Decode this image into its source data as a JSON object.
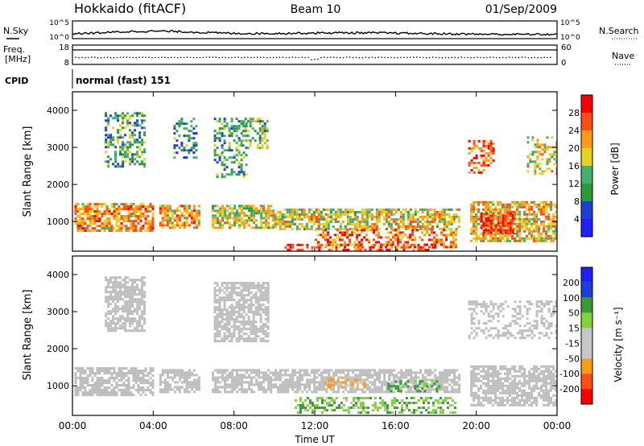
{
  "header": {
    "station": "Hokkaido (fitACF)",
    "beam": "Beam 10",
    "date": "01/Sep/2009"
  },
  "noise_panel": {
    "left_label": "N.Sky",
    "right_label": "N.Search",
    "tick_hi": "10^5",
    "tick_lo": "10^0"
  },
  "freq_panel": {
    "left_label_1": "Freq.",
    "left_label_2": "[MHz]",
    "left_tick_hi": "18",
    "left_tick_lo": "8",
    "right_label": "Nave",
    "right_tick_hi": "60",
    "right_tick_lo": "0"
  },
  "cpid": {
    "label": "CPID",
    "value": "normal (fast) 151"
  },
  "colors": {
    "power_scale": [
      "#1f1fff",
      "#1c3fd6",
      "#2a9a3a",
      "#44b070",
      "#e6d21e",
      "#ff9a14",
      "#ff4b14",
      "#ff0000"
    ],
    "velocity_scale": [
      "#ff0000",
      "#ff4b14",
      "#ff9a14",
      "#c6c6c6",
      "#c6c6c6",
      "#7fd43a",
      "#3a9a3a",
      "#1c3fd6",
      "#1f1fff"
    ],
    "ground_scatter": "#bdbdbd"
  },
  "chart_data": [
    {
      "type": "heatmap",
      "name": "power",
      "ylabel": "Slant Range [km]",
      "yticks": [
        1000,
        2000,
        3000,
        4000
      ],
      "ylim": [
        200,
        4500
      ],
      "colorbar_label": "Power [dB]",
      "colorbar_ticks": [
        4,
        8,
        12,
        16,
        20,
        24,
        28
      ],
      "colorbar_range": [
        0,
        32
      ],
      "regions": [
        {
          "t": [
            0.1,
            4.0
          ],
          "r": [
            750,
            1500
          ],
          "v": 22
        },
        {
          "t": [
            4.3,
            6.3
          ],
          "r": [
            800,
            1450
          ],
          "v": 22
        },
        {
          "t": [
            6.9,
            10.0
          ],
          "r": [
            850,
            1450
          ],
          "v": 18
        },
        {
          "t": [
            10.0,
            19.2
          ],
          "r": [
            800,
            1350
          ],
          "v": 18
        },
        {
          "t": [
            19.7,
            24.0
          ],
          "r": [
            500,
            1550
          ],
          "v": 20
        },
        {
          "t": [
            20.2,
            21.8
          ],
          "r": [
            700,
            1250
          ],
          "v": 28
        },
        {
          "t": [
            1.6,
            3.6
          ],
          "r": [
            2500,
            3950
          ],
          "v": 12
        },
        {
          "t": [
            5.0,
            6.1
          ],
          "r": [
            2700,
            3800
          ],
          "v": 10
        },
        {
          "t": [
            7.0,
            8.6
          ],
          "r": [
            2200,
            3800
          ],
          "v": 12
        },
        {
          "t": [
            8.4,
            9.7
          ],
          "r": [
            3000,
            3800
          ],
          "v": 14
        },
        {
          "t": [
            19.6,
            20.8
          ],
          "r": [
            2300,
            3200
          ],
          "v": 26
        },
        {
          "t": [
            22.5,
            24.0
          ],
          "r": [
            2300,
            3300
          ],
          "v": 18
        },
        {
          "t": [
            12.0,
            19.0
          ],
          "r": [
            300,
            800
          ],
          "v": 24
        },
        {
          "t": [
            10.5,
            18.0
          ],
          "r": [
            200,
            400
          ],
          "v": 28
        }
      ]
    },
    {
      "type": "heatmap",
      "name": "velocity",
      "xlabel": "Time UT",
      "xticks": [
        "00:00",
        "04:00",
        "08:00",
        "12:00",
        "16:00",
        "20:00",
        "00:00"
      ],
      "xlim": [
        0,
        24
      ],
      "ylabel": "Slant Range [km]",
      "yticks": [
        1000,
        2000,
        3000,
        4000
      ],
      "ylim": [
        200,
        4500
      ],
      "colorbar_label": "Velocity [m s⁻¹]",
      "colorbar_ticks": [
        200,
        100,
        50,
        15,
        -15,
        -50,
        -100,
        -200
      ],
      "regions": [
        {
          "t": [
            0.1,
            4.0
          ],
          "r": [
            750,
            1500
          ],
          "v": 0
        },
        {
          "t": [
            4.3,
            6.3
          ],
          "r": [
            800,
            1450
          ],
          "v": 0
        },
        {
          "t": [
            6.9,
            19.2
          ],
          "r": [
            800,
            1450
          ],
          "v": 0
        },
        {
          "t": [
            19.7,
            24.0
          ],
          "r": [
            500,
            1550
          ],
          "v": 0
        },
        {
          "t": [
            1.6,
            3.6
          ],
          "r": [
            2500,
            3950
          ],
          "v": 0
        },
        {
          "t": [
            7.0,
            9.7
          ],
          "r": [
            2200,
            3800
          ],
          "v": 0
        },
        {
          "t": [
            19.6,
            24.0
          ],
          "r": [
            2300,
            3300
          ],
          "v": 0
        },
        {
          "t": [
            12.5,
            14.5
          ],
          "r": [
            950,
            1250
          ],
          "v": -60
        },
        {
          "t": [
            15.6,
            18.2
          ],
          "r": [
            850,
            1150
          ],
          "v": 70
        },
        {
          "t": [
            11.0,
            19.0
          ],
          "r": [
            250,
            700
          ],
          "v": 40
        }
      ]
    }
  ]
}
